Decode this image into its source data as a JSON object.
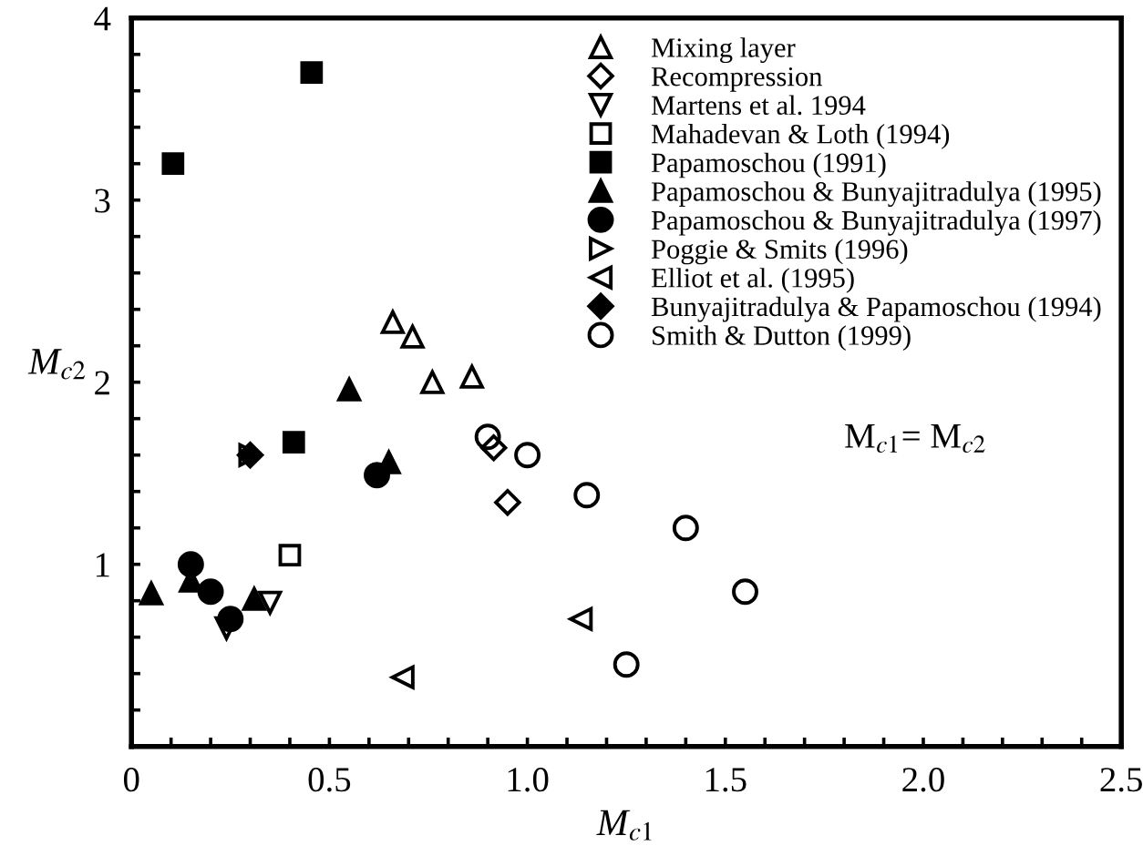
{
  "chart_data": {
    "type": "scatter",
    "xlabel": "M$_{c1}$",
    "ylabel": "M$_{c2}$",
    "xlim": [
      0,
      2.5
    ],
    "ylim": [
      0,
      4
    ],
    "xticks": [
      {
        "value": 0,
        "label": "0"
      },
      {
        "value": 0.1,
        "label": null
      },
      {
        "value": 0.2,
        "label": null
      },
      {
        "value": 0.3,
        "label": null
      },
      {
        "value": 0.4,
        "label": null
      },
      {
        "value": 0.5,
        "label": "0.5"
      },
      {
        "value": 0.6,
        "label": null
      },
      {
        "value": 0.7,
        "label": null
      },
      {
        "value": 0.8,
        "label": null
      },
      {
        "value": 0.9,
        "label": null
      },
      {
        "value": 1,
        "label": "1.0"
      },
      {
        "value": 1.1,
        "label": null
      },
      {
        "value": 1.2,
        "label": null
      },
      {
        "value": 1.3,
        "label": null
      },
      {
        "value": 1.4,
        "label": null
      },
      {
        "value": 1.5,
        "label": "1.5"
      },
      {
        "value": 1.6,
        "label": null
      },
      {
        "value": 1.7,
        "label": null
      },
      {
        "value": 1.8,
        "label": null
      },
      {
        "value": 1.9,
        "label": null
      },
      {
        "value": 2,
        "label": "2.0"
      },
      {
        "value": 2.1,
        "label": null
      },
      {
        "value": 2.2,
        "label": null
      },
      {
        "value": 2.3,
        "label": null
      },
      {
        "value": 2.4,
        "label": null
      },
      {
        "value": 2.5,
        "label": "2.5"
      }
    ],
    "yticks": [
      {
        "value": 0.2,
        "label": null
      },
      {
        "value": 0.4,
        "label": null
      },
      {
        "value": 0.6,
        "label": null
      },
      {
        "value": 0.8,
        "label": null
      },
      1,
      {
        "value": 1.2,
        "label": null
      },
      {
        "value": 1.4,
        "label": null
      },
      {
        "value": 1.6,
        "label": null
      },
      {
        "value": 1.8,
        "label": null
      },
      2,
      {
        "value": 2.2,
        "label": null
      },
      {
        "value": 2.4,
        "label": null
      },
      {
        "value": 2.6,
        "label": null
      },
      {
        "value": 2.8,
        "label": null
      },
      3,
      {
        "value": 3.2,
        "label": null
      },
      {
        "value": 3.4,
        "label": null
      },
      {
        "value": 3.6,
        "label": null
      },
      {
        "value": 3.8,
        "label": null
      },
      4
    ],
    "grid": false,
    "legend": "top right",
    "annotations": [
      "M$_{c1}$= M$_{c2}$"
    ],
    "series": [
      {
        "name": "Mixing layer",
        "color": "#000000",
        "marker": "triangle-open",
        "x": [
          0.66,
          0.71,
          0.76,
          0.86
        ],
        "values": [
          2.33,
          2.25,
          2.0,
          2.03
        ]
      },
      {
        "name": "Recompression",
        "color": "#000000",
        "marker": "diamond-open",
        "x": [
          0.915,
          0.95
        ],
        "values": [
          1.64,
          1.34
        ]
      },
      {
        "name": "Martens et al. 1994",
        "color": "#000000",
        "marker": "triangle-down-open",
        "x": [
          0.24,
          0.35
        ],
        "values": [
          0.65,
          0.79
        ]
      },
      {
        "name": "Mahadevan & Loth (1994)",
        "color": "#000000",
        "marker": "square-open",
        "x": [
          0.4
        ],
        "values": [
          1.05
        ]
      },
      {
        "name": "Papamoschou (1991)",
        "color": "#000000",
        "marker": "square",
        "x": [
          0.105,
          0.455,
          0.41
        ],
        "values": [
          3.2,
          3.7,
          1.67
        ]
      },
      {
        "name": "Papamoschou & Bunyajitradulya (1995)",
        "color": "#000000",
        "marker": "triangle",
        "x": [
          0.55,
          0.05,
          0.15,
          0.31,
          0.65
        ],
        "values": [
          1.96,
          0.84,
          0.91,
          0.81,
          1.56
        ]
      },
      {
        "name": "Papamoschou & Bunyajitradulya (1997)",
        "color": "#000000",
        "marker": "circle",
        "x": [
          0.15,
          0.2,
          0.25,
          0.62
        ],
        "values": [
          1.0,
          0.85,
          0.7,
          1.49
        ]
      },
      {
        "name": "Poggie & Smits (1996)",
        "color": "#000000",
        "marker": "triangle-right-open",
        "x": [
          0.3
        ],
        "values": [
          1.6
        ]
      },
      {
        "name": "Elliot et al. (1995)",
        "color": "#000000",
        "marker": "triangle-left-open",
        "x": [
          0.685,
          1.135
        ],
        "values": [
          0.38,
          0.7
        ]
      },
      {
        "name": "Bunyajitradulya & Papamoschou (1994)",
        "color": "#000000",
        "marker": "diamond",
        "x": [
          0.3
        ],
        "values": [
          1.6
        ]
      },
      {
        "name": "Smith & Dutton (1999)",
        "color": "#000000",
        "marker": "circle-open",
        "x": [
          0.9,
          1.0,
          1.15,
          1.4,
          1.55,
          1.25
        ],
        "values": [
          1.7,
          1.6,
          1.38,
          1.2,
          0.85,
          0.45
        ]
      }
    ]
  }
}
